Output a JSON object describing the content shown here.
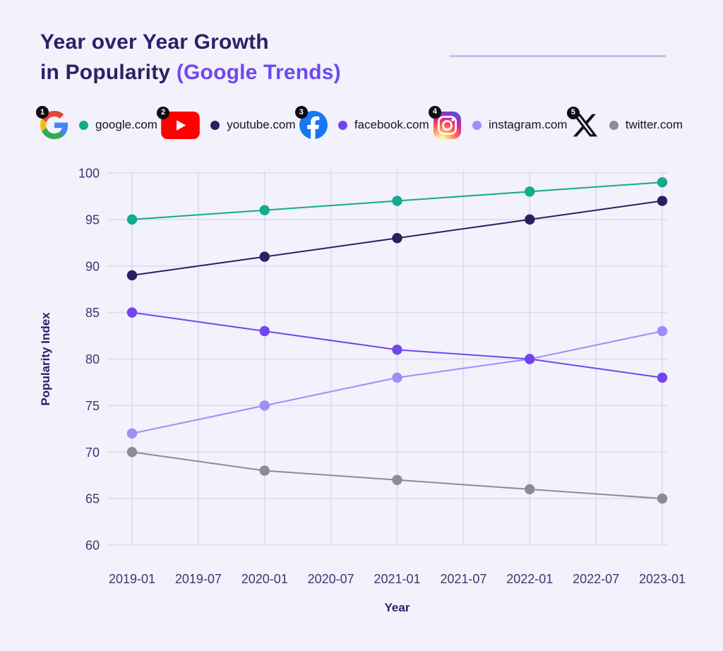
{
  "title": {
    "line1": "Year over Year Growth",
    "line2_prefix": "in Popularity ",
    "line2_accent": "(Google Trends)"
  },
  "colors": {
    "background": "#f2f1fc",
    "title_text": "#2d2066",
    "title_accent": "#6d49f0",
    "grid": "#dcd9f2",
    "tick_text": "#433470",
    "divider": "#cbc0e8",
    "badge": "#0d0d12"
  },
  "legend": [
    {
      "num": "1",
      "icon": "google-logo-icon",
      "dot_color": "#12ab8d",
      "label": "google.com"
    },
    {
      "num": "2",
      "icon": "youtube-logo-icon",
      "dot_color": "#2b1f60",
      "label": "youtube.com"
    },
    {
      "num": "3",
      "icon": "facebook-logo-icon",
      "dot_color": "#7244ef",
      "label": "facebook.com"
    },
    {
      "num": "4",
      "icon": "instagram-logo-icon",
      "dot_color": "#9d8ff5",
      "label": "instagram.com"
    },
    {
      "num": "5",
      "icon": "x-logo-icon",
      "dot_color": "#8b8b99",
      "label": "twitter.com"
    }
  ],
  "chart_data": {
    "type": "line",
    "title": "Year over Year Growth in Popularity (Google Trends)",
    "xlabel": "Year",
    "ylabel": "Popularity Index",
    "grid": true,
    "legend_position": "top",
    "x_ticklabels": [
      "2019-01",
      "2019-07",
      "2020-01",
      "2020-07",
      "2021-01",
      "2021-07",
      "2022-01",
      "2022-07",
      "2023-01"
    ],
    "y_ticks": [
      60,
      65,
      70,
      75,
      80,
      85,
      90,
      95,
      100
    ],
    "ylim": [
      60,
      100
    ],
    "x": [
      "2019-01",
      "2020-01",
      "2021-01",
      "2022-01",
      "2023-01"
    ],
    "series": [
      {
        "name": "google.com",
        "color": "#12ab8d",
        "values": [
          95,
          96,
          97,
          98,
          99
        ]
      },
      {
        "name": "youtube.com",
        "color": "#2b1f60",
        "values": [
          89,
          91,
          93,
          95,
          97
        ]
      },
      {
        "name": "facebook.com",
        "color": "#7244ef",
        "values": [
          85,
          83,
          81,
          80,
          78
        ]
      },
      {
        "name": "instagram.com",
        "color": "#9d8ff5",
        "values": [
          72,
          75,
          78,
          80,
          83
        ]
      },
      {
        "name": "twitter.com",
        "color": "#8b8b99",
        "values": [
          70,
          68,
          67,
          66,
          65
        ]
      }
    ]
  }
}
